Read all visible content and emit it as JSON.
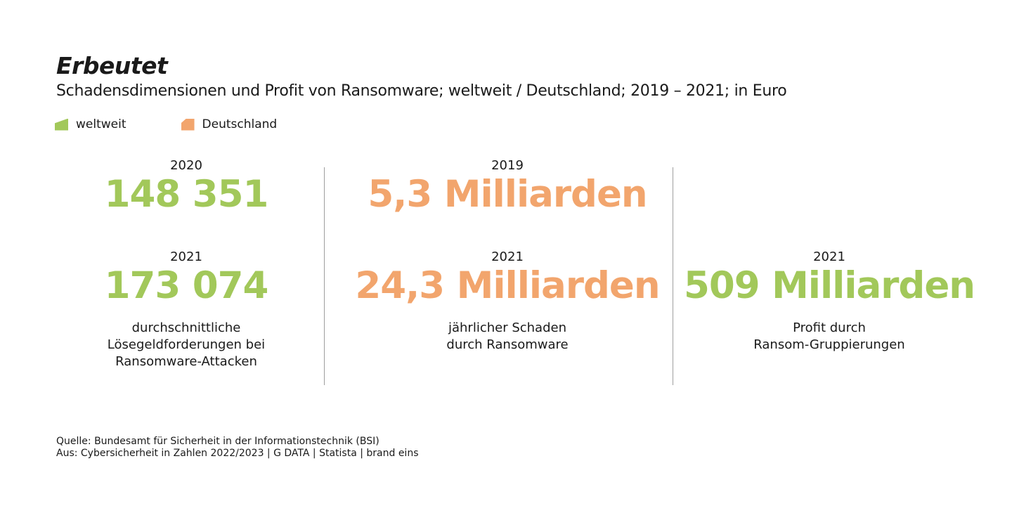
{
  "title": "Erbeutet",
  "subtitle": "Schadensdimensionen und Profit von Ransomware; weltweit / Deutschland; 2019 – 2021; in Euro",
  "legend": [
    {
      "label": "weltweit",
      "color": "#a2c85a"
    },
    {
      "label": "Deutschland",
      "color": "#f2a56d"
    }
  ],
  "colors": {
    "green": "#a2c85a",
    "orange": "#f2a56d",
    "divider": "#9e9e9e"
  },
  "chart_data": {
    "type": "table",
    "panels": [
      {
        "series": "weltweit",
        "entries": [
          {
            "year": "2020",
            "value": 148351,
            "display": "148 351"
          },
          {
            "year": "2021",
            "value": 173074,
            "display": "173 074"
          }
        ],
        "description": [
          "durchschnittliche",
          "Lösegeldforderungen bei",
          "Ransomware-Attacken"
        ]
      },
      {
        "series": "Deutschland",
        "entries": [
          {
            "year": "2019",
            "value": 5.3,
            "unit": "Milliarden",
            "display": "5,3 Milliarden"
          },
          {
            "year": "2021",
            "value": 24.3,
            "unit": "Milliarden",
            "display": "24,3 Milliarden"
          }
        ],
        "description": [
          "jährlicher Schaden",
          "durch Ransomware"
        ]
      },
      {
        "series": "weltweit",
        "entries": [
          {
            "year": "2021",
            "value": 509,
            "unit": "Milliarden",
            "display": "509 Milliarden"
          }
        ],
        "description": [
          "Profit durch",
          "Ransom-Gruppierungen"
        ]
      }
    ]
  },
  "source": {
    "line1": "Quelle: Bundesamt für Sicherheit in der Informationstechnik (BSI)",
    "line2": "Aus: Cybersicherheit in Zahlen 2022/2023 | G DATA | Statista | brand eins"
  }
}
